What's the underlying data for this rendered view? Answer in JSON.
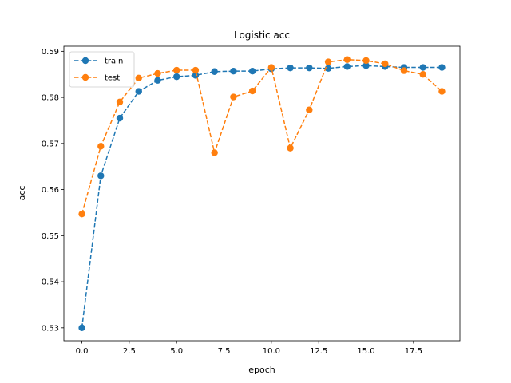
{
  "chart_data": {
    "type": "line",
    "title": "Logistic acc",
    "xlabel": "epoch",
    "ylabel": "acc",
    "xlim": [
      -0.95,
      19.95
    ],
    "ylim": [
      0.5272,
      0.5911
    ],
    "xticks": [
      0.0,
      2.5,
      5.0,
      7.5,
      10.0,
      12.5,
      15.0,
      17.5
    ],
    "xtick_labels": [
      "0.0",
      "2.5",
      "5.0",
      "7.5",
      "10.0",
      "12.5",
      "15.0",
      "17.5"
    ],
    "yticks": [
      0.53,
      0.54,
      0.55,
      0.56,
      0.57,
      0.58,
      0.59
    ],
    "ytick_labels": [
      "0.53",
      "0.54",
      "0.55",
      "0.56",
      "0.57",
      "0.58",
      "0.59"
    ],
    "grid": false,
    "legend_position": "upper-left",
    "x": [
      0,
      1,
      2,
      3,
      4,
      5,
      6,
      7,
      8,
      9,
      10,
      11,
      12,
      13,
      14,
      15,
      16,
      17,
      18,
      19
    ],
    "series": [
      {
        "name": "train",
        "color": "#1f77b4",
        "style": "dashed",
        "marker": "circle",
        "values": [
          0.53,
          0.563,
          0.5755,
          0.5813,
          0.5837,
          0.5845,
          0.5848,
          0.5856,
          0.5857,
          0.5857,
          0.5862,
          0.5864,
          0.5864,
          0.5863,
          0.5867,
          0.5869,
          0.5867,
          0.5865,
          0.5865,
          0.5865
        ]
      },
      {
        "name": "test",
        "color": "#ff7f0e",
        "style": "dashed",
        "marker": "circle",
        "values": [
          0.5547,
          0.5694,
          0.579,
          0.5842,
          0.5852,
          0.5859,
          0.5859,
          0.568,
          0.5801,
          0.5814,
          0.5865,
          0.569,
          0.5773,
          0.5877,
          0.5882,
          0.588,
          0.5873,
          0.5858,
          0.585,
          0.5813
        ]
      }
    ]
  }
}
